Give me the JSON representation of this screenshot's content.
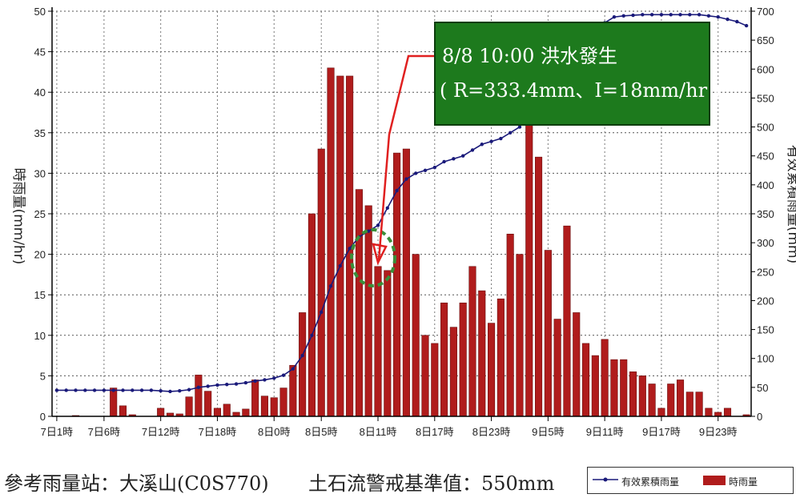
{
  "chart_data": {
    "type": "bar",
    "x_tick_labels": [
      "7日1時",
      "7日6時",
      "7日12時",
      "7日18時",
      "8日0時",
      "8日5時",
      "8日11時",
      "8日17時",
      "8日23時",
      "9日5時",
      "9日11時",
      "9日17時",
      "9日23時"
    ],
    "left_axis": {
      "label": "時雨量(mm/hr)",
      "ylim": [
        0,
        50
      ],
      "ticks": [
        0,
        5,
        10,
        15,
        20,
        25,
        30,
        35,
        40,
        45,
        50
      ]
    },
    "right_axis": {
      "label": "有效累積雨量(mm)",
      "ylim": [
        0,
        700
      ],
      "ticks": [
        0,
        50,
        100,
        150,
        200,
        250,
        300,
        350,
        400,
        450,
        500,
        550,
        600,
        650,
        700
      ]
    },
    "series": [
      {
        "name": "時雨量",
        "kind": "bar",
        "axis": "left",
        "color": "#b01c1c",
        "values": [
          0,
          0,
          0.1,
          0,
          0,
          0,
          3.5,
          1.3,
          0.2,
          0,
          0,
          1,
          0.4,
          0.3,
          2.4,
          5.1,
          3.1,
          1,
          1.5,
          0.5,
          0.9,
          4.5,
          2.5,
          2.3,
          3.5,
          6.3,
          12.8,
          25,
          33,
          43,
          42,
          42,
          28,
          26,
          18.5,
          18,
          32.5,
          33,
          20,
          10,
          9,
          14,
          11,
          14,
          18.5,
          15.5,
          11.5,
          14.5,
          22.5,
          20,
          38,
          32,
          20.5,
          12,
          23.5,
          12.8,
          9,
          7.5,
          9.5,
          7,
          7,
          5.5,
          5,
          4,
          1,
          4,
          4.5,
          3,
          3,
          1,
          0.5,
          1,
          0,
          0.2
        ]
      },
      {
        "name": "有效累積雨量",
        "kind": "line",
        "axis": "right",
        "color": "#1a1a7a",
        "values": [
          45,
          45,
          45,
          45,
          45,
          45,
          45,
          45,
          45,
          45,
          45,
          44,
          43,
          44,
          46,
          50,
          52,
          54,
          55,
          56,
          58,
          61,
          63,
          66,
          71,
          82,
          105,
          140,
          180,
          225,
          260,
          290,
          310,
          320,
          330,
          360,
          390,
          410,
          420,
          425,
          430,
          440,
          445,
          450,
          460,
          470,
          475,
          480,
          490,
          500,
          530,
          550,
          560,
          565,
          570,
          585,
          600,
          640,
          680,
          690,
          692,
          693,
          694,
          694,
          694,
          694,
          694,
          694,
          694,
          692,
          690,
          686,
          682,
          675
        ]
      }
    ],
    "annotation": {
      "line1": "8/8 10:00 洪水發生",
      "line2": "( R=333.4mm、I=18mm/hr )",
      "box_color": "#1d7a1d",
      "circle_color": "#3a8f3a"
    },
    "legend": {
      "line_label": "有效累積雨量",
      "bar_label": "時雨量",
      "placement": "bottom-right"
    }
  },
  "footer": {
    "station": "參考雨量站：大溪山(C0S770)",
    "threshold": "土石流警戒基準值：550mm"
  }
}
